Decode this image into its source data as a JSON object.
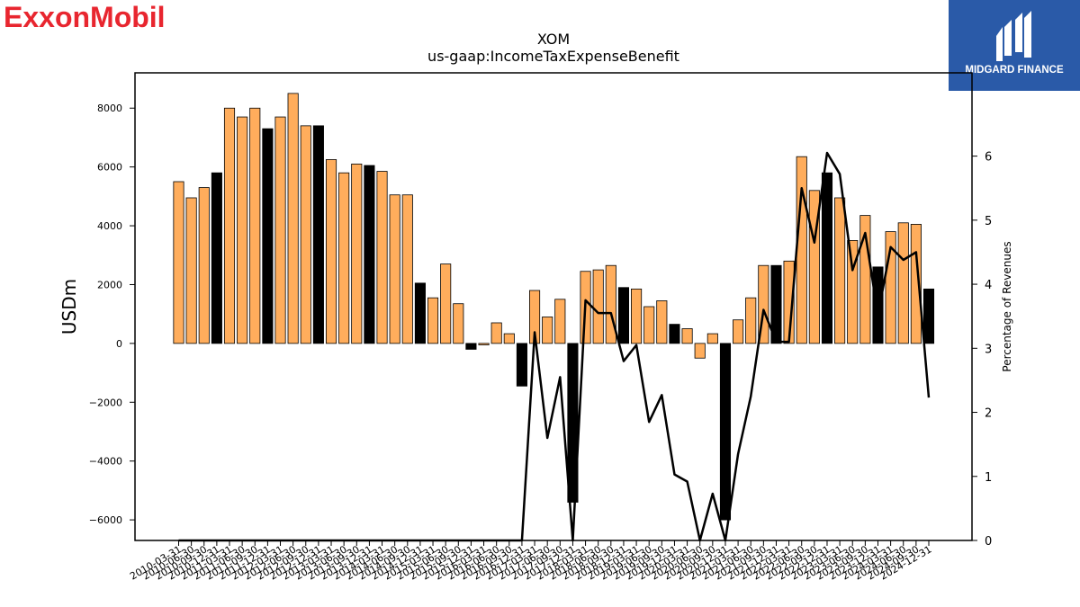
{
  "brand": {
    "name": "ExxonMobil",
    "color": "#e8262f"
  },
  "partner": {
    "name": "MIDGARD FINANCE",
    "color": "#2a5aa8"
  },
  "chart_data": {
    "type": "bar",
    "title": "XOM",
    "subtitle": "us-gaap:IncomeTaxExpenseBenefit",
    "ylabel": "USDm",
    "y2label": "Percentage of Revenues",
    "ylim": [
      -6700,
      9200
    ],
    "y2lim": [
      0,
      7.3
    ],
    "yticks": [
      -6000,
      -4000,
      -2000,
      0,
      2000,
      4000,
      6000,
      8000
    ],
    "y2ticks": [
      0,
      1,
      2,
      3,
      4,
      5,
      6
    ],
    "colors": {
      "quarterly": "#ffad5c",
      "annual": "#000000",
      "line": "#000000"
    },
    "categories": [
      "2010-03-31",
      "2010-06-30",
      "2010-09-30",
      "2010-12-31",
      "2011-03-31",
      "2011-06-30",
      "2011-09-30",
      "2011-12-31",
      "2012-03-31",
      "2012-06-30",
      "2012-09-30",
      "2012-12-31",
      "2013-03-31",
      "2013-06-30",
      "2013-09-30",
      "2013-12-31",
      "2014-03-31",
      "2014-06-30",
      "2014-09-30",
      "2014-12-31",
      "2015-03-31",
      "2015-06-30",
      "2015-09-30",
      "2015-12-31",
      "2016-03-31",
      "2016-06-30",
      "2016-09-30",
      "2016-12-31",
      "2017-03-31",
      "2017-06-30",
      "2017-09-30",
      "2017-12-31",
      "2018-03-31",
      "2018-06-30",
      "2018-09-30",
      "2018-12-31",
      "2019-03-31",
      "2019-06-30",
      "2019-09-30",
      "2019-12-31",
      "2020-03-31",
      "2020-06-30",
      "2020-09-30",
      "2020-12-31",
      "2021-03-31",
      "2021-06-30",
      "2021-09-30",
      "2021-12-31",
      "2022-03-31",
      "2022-06-30",
      "2022-09-30",
      "2022-12-31",
      "2023-03-31",
      "2023-06-30",
      "2023-09-30",
      "2023-12-31",
      "2024-03-31",
      "2024-06-30",
      "2024-09-30",
      "2024-12-31"
    ],
    "series": [
      {
        "values": [
          5500,
          4950,
          5300,
          5800,
          8000,
          7700,
          8000,
          7300,
          7700,
          8500,
          7400,
          7400,
          6250,
          5800,
          6100,
          6050,
          5850,
          5050,
          5050,
          2050,
          1550,
          2700,
          1350,
          -200,
          -50,
          700,
          330,
          -1450,
          1800,
          900,
          1500,
          -5400,
          2450,
          2500,
          2650,
          1900,
          1850,
          1250,
          1450,
          650,
          500,
          -500,
          330,
          -6000,
          800,
          1550,
          2650,
          2650,
          2800,
          6350,
          5200,
          5800,
          4950,
          3500,
          4350,
          2600,
          3800,
          4100,
          4050,
          1850
        ]
      },
      {
        "values": [
          0,
          0,
          0,
          0,
          0,
          0,
          0,
          0,
          0,
          0,
          0,
          0,
          0,
          0,
          0,
          0,
          0,
          0,
          0,
          0,
          0,
          0,
          0,
          0,
          0,
          0,
          0,
          0,
          3.25,
          1.6,
          2.55,
          0,
          3.75,
          3.55,
          3.55,
          2.8,
          3.05,
          1.85,
          2.27,
          1.03,
          0.92,
          0,
          0.73,
          0,
          1.35,
          2.25,
          3.6,
          3.1,
          3.1,
          5.5,
          4.65,
          6.05,
          5.72,
          4.22,
          4.8,
          3.52,
          4.58,
          4.38,
          4.5,
          2.23
        ]
      }
    ],
    "annual_flags": [
      0,
      0,
      0,
      1,
      0,
      0,
      0,
      1,
      0,
      0,
      0,
      1,
      0,
      0,
      0,
      1,
      0,
      0,
      0,
      1,
      0,
      0,
      0,
      1,
      0,
      0,
      0,
      1,
      0,
      0,
      0,
      1,
      0,
      0,
      0,
      1,
      0,
      0,
      0,
      1,
      0,
      0,
      0,
      1,
      0,
      0,
      0,
      1,
      0,
      0,
      0,
      1,
      0,
      0,
      0,
      1,
      0,
      0,
      0,
      1
    ]
  }
}
